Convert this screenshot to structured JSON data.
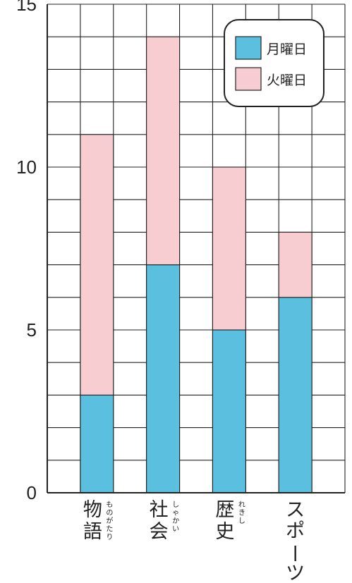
{
  "chart_data": {
    "type": "bar",
    "stacked": true,
    "categories": [
      "物語",
      "社会",
      "歴史",
      "スポーツ"
    ],
    "category_readings": [
      "ものがたり",
      "しゃかい",
      "れきし",
      ""
    ],
    "series": [
      {
        "name": "月曜日",
        "values": [
          3,
          7,
          5,
          6
        ],
        "color": "#5bc0e0"
      },
      {
        "name": "火曜日",
        "values": [
          8,
          7,
          5,
          2
        ],
        "color": "#f8cdd2"
      }
    ],
    "ylim": [
      0,
      15
    ],
    "yticks": [
      "0",
      "5",
      "10",
      "15"
    ],
    "grid": true,
    "legend": "top-right"
  }
}
